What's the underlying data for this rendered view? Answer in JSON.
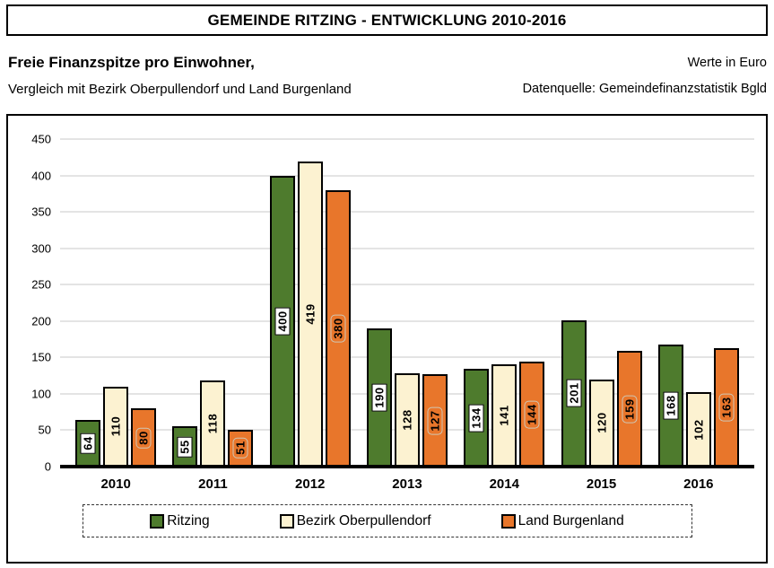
{
  "title": "GEMEINDE RITZING - ENTWICKLUNG 2010-2016",
  "header": {
    "subtitle_bold": "Freie Finanzspitze pro Einwohner,",
    "subtitle": "Vergleich mit Bezirk Oberpullendorf und Land Burgenland",
    "unit_note": "Werte in Euro",
    "source_note": "Datenquelle: Gemeindefinanzstatistik Bgld"
  },
  "colors": {
    "ritzing": "#4e7b2d",
    "bezirk": "#fcf2d1",
    "land": "#e8762b",
    "bar_border": "#000000",
    "gridline": "#c9c9c9",
    "value_label_text": "#000000"
  },
  "chart_data": {
    "type": "bar",
    "title": "Freie Finanzspitze pro Einwohner, Vergleich mit Bezirk Oberpullendorf und Land Burgenland (Werte in Euro)",
    "categories": [
      "2010",
      "2011",
      "2012",
      "2013",
      "2014",
      "2015",
      "2016"
    ],
    "series": [
      {
        "name": "Ritzing",
        "color_key": "ritzing",
        "values": [
          64,
          55,
          400,
          190,
          134,
          201,
          168
        ]
      },
      {
        "name": "Bezirk Oberpullendorf",
        "color_key": "bezirk",
        "values": [
          110,
          118,
          419,
          128,
          141,
          120,
          102
        ]
      },
      {
        "name": "Land Burgenland",
        "color_key": "land",
        "values": [
          80,
          51,
          380,
          127,
          144,
          159,
          163
        ]
      }
    ],
    "xlabel": "",
    "ylabel": "",
    "ylim": [
      0,
      450
    ],
    "yticks": [
      0,
      50,
      100,
      150,
      200,
      250,
      300,
      350,
      400,
      450
    ],
    "grid": true,
    "data_labels": "rotated-90-inside-center",
    "legend_position": "bottom"
  }
}
